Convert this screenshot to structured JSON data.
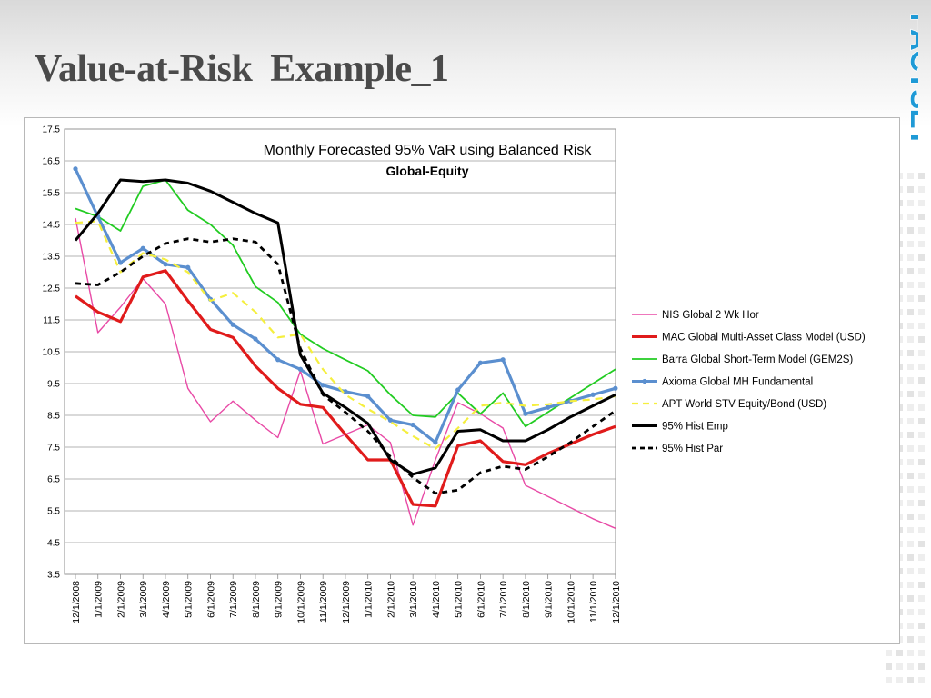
{
  "slide": {
    "title": "Value-at-Risk  Example_1",
    "logo_text": "FACTSET",
    "colors": {
      "logo": "#1f9ad6",
      "title": "#4a4a4a"
    }
  },
  "chart_data": {
    "type": "line",
    "title": "Monthly  Forecasted  95%  VaR  using Balanced Risk",
    "subtitle": "Global-Equity",
    "xlabel": "",
    "ylabel": "",
    "ylim": [
      3.5,
      17.5
    ],
    "yticks": [
      "17.5",
      "16.5",
      "15.5",
      "14.5",
      "13.5",
      "12.5",
      "11.5",
      "10.5",
      "9.5",
      "8.5",
      "7.5",
      "6.5",
      "5.5",
      "4.5",
      "3.5"
    ],
    "categories": [
      "12/1/2008",
      "1/1/2009",
      "2/1/2009",
      "3/1/2009",
      "4/1/2009",
      "5/1/2009",
      "6/1/2009",
      "7/1/2009",
      "8/1/2009",
      "9/1/2009",
      "10/1/2009",
      "11/1/2009",
      "12/1/2009",
      "1/1/2010",
      "2/1/2010",
      "3/1/2010",
      "4/1/2010",
      "5/1/2010",
      "6/1/2010",
      "7/1/2010",
      "8/1/2010",
      "9/1/2010",
      "10/1/2010",
      "11/1/2010",
      "12/1/2010"
    ],
    "grid": true,
    "legend": "right",
    "series": [
      {
        "name": "NIS Global 2 Wk Hor",
        "color": "#e84aa6",
        "style": "thin",
        "values": [
          14.7,
          11.1,
          11.9,
          12.8,
          12.0,
          9.35,
          8.3,
          8.95,
          8.35,
          7.8,
          9.9,
          7.6,
          7.9,
          8.2,
          7.65,
          5.05,
          7.1,
          8.9,
          8.55,
          8.1,
          6.3,
          5.95,
          5.6,
          5.25,
          4.95
        ]
      },
      {
        "name": "MAC Global Multi-Asset Class Model (USD)",
        "color": "#e01b1b",
        "style": "thick",
        "values": [
          12.25,
          11.75,
          11.45,
          12.85,
          13.05,
          12.1,
          11.2,
          10.95,
          10.05,
          9.35,
          8.85,
          8.75,
          7.9,
          7.1,
          7.1,
          5.7,
          5.65,
          7.55,
          7.7,
          7.05,
          6.95,
          7.3,
          7.6,
          7.9,
          8.15
        ]
      },
      {
        "name": "Barra Global Short-Term Model (GEM2S)",
        "color": "#22cc22",
        "style": "medium",
        "values": [
          15.0,
          14.75,
          14.3,
          15.7,
          15.9,
          14.95,
          14.5,
          13.85,
          12.55,
          12.05,
          11.05,
          10.6,
          10.25,
          9.9,
          9.15,
          8.5,
          8.45,
          9.2,
          8.55,
          9.2,
          8.15,
          8.6,
          9.05,
          9.5,
          9.95
        ]
      },
      {
        "name": "Axioma Global MH Fundamental",
        "color": "#5b8fcf",
        "style": "marker",
        "values": [
          16.25,
          14.75,
          13.3,
          13.75,
          13.25,
          13.15,
          12.15,
          11.35,
          10.9,
          10.25,
          9.95,
          9.45,
          9.25,
          9.1,
          8.35,
          8.2,
          7.65,
          9.3,
          10.15,
          10.25,
          8.55,
          8.75,
          8.95,
          9.15,
          9.35
        ]
      },
      {
        "name": "APT World STV Equity/Bond (USD)",
        "color": "#f5ef3f",
        "style": "dash-yellow",
        "values": [
          14.55,
          14.6,
          13.0,
          13.6,
          13.4,
          13.0,
          12.1,
          12.35,
          11.75,
          10.95,
          11.05,
          9.95,
          9.15,
          8.7,
          8.3,
          7.85,
          7.45,
          8.1,
          8.8,
          8.9,
          8.8,
          8.85,
          8.95,
          9.0,
          9.1
        ]
      },
      {
        "name": "95% Hist Emp",
        "color": "#000000",
        "style": "thick-black",
        "values": [
          14.0,
          14.85,
          15.9,
          15.85,
          15.9,
          15.8,
          15.55,
          15.2,
          14.85,
          14.55,
          10.4,
          9.2,
          8.75,
          8.25,
          7.1,
          6.65,
          6.85,
          8.0,
          8.05,
          7.7,
          7.7,
          8.05,
          8.45,
          8.8,
          9.15
        ]
      },
      {
        "name": "95% Hist Par",
        "color": "#000000",
        "style": "dash-black",
        "values": [
          12.65,
          12.6,
          13.0,
          13.5,
          13.9,
          14.05,
          13.95,
          14.05,
          13.95,
          13.25,
          10.6,
          9.15,
          8.6,
          8.0,
          7.2,
          6.55,
          6.05,
          6.15,
          6.7,
          6.9,
          6.8,
          7.2,
          7.65,
          8.15,
          8.65
        ]
      }
    ]
  }
}
